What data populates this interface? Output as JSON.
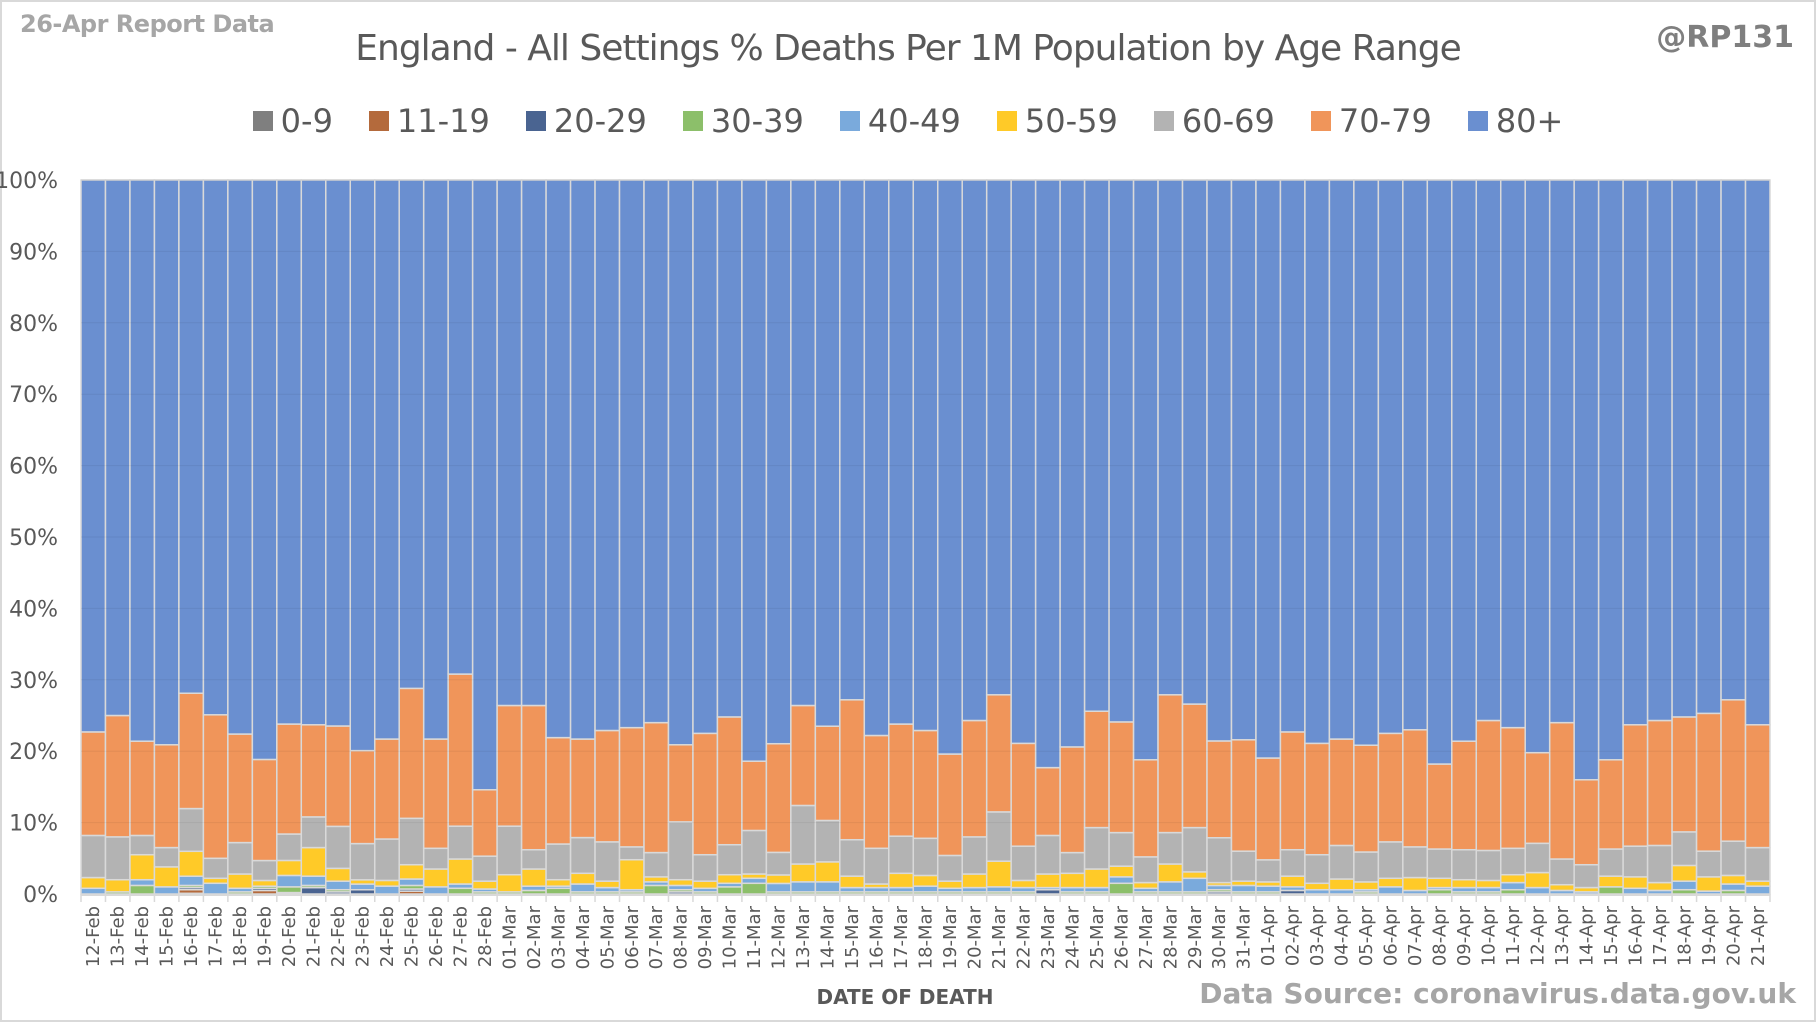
{
  "header": {
    "report_label": "26-Apr Report Data",
    "handle": "@RP131"
  },
  "footer": {
    "source": "Data Source: coronavirus.data.gov.uk"
  },
  "chart_data": {
    "type": "bar",
    "stacked": "percent",
    "title": "England - All Settings % Deaths Per 1M Population by Age Range",
    "xlabel": "DATE OF DEATH",
    "ylabel": "",
    "ylim": [
      0,
      100
    ],
    "yticks": [
      "0%",
      "10%",
      "20%",
      "30%",
      "40%",
      "50%",
      "60%",
      "70%",
      "80%",
      "90%",
      "100%"
    ],
    "legend_position": "top",
    "grid": true,
    "categories": [
      "12-Feb",
      "13-Feb",
      "14-Feb",
      "15-Feb",
      "16-Feb",
      "17-Feb",
      "18-Feb",
      "19-Feb",
      "20-Feb",
      "21-Feb",
      "22-Feb",
      "23-Feb",
      "24-Feb",
      "25-Feb",
      "26-Feb",
      "27-Feb",
      "28-Feb",
      "01-Mar",
      "02-Mar",
      "03-Mar",
      "04-Mar",
      "05-Mar",
      "06-Mar",
      "07-Mar",
      "08-Mar",
      "09-Mar",
      "10-Mar",
      "11-Mar",
      "12-Mar",
      "13-Mar",
      "14-Mar",
      "15-Mar",
      "16-Mar",
      "17-Mar",
      "18-Mar",
      "19-Mar",
      "20-Mar",
      "21-Mar",
      "22-Mar",
      "23-Mar",
      "24-Mar",
      "25-Mar",
      "26-Mar",
      "27-Mar",
      "28-Mar",
      "29-Mar",
      "30-Mar",
      "31-Mar",
      "01-Apr",
      "02-Apr",
      "03-Apr",
      "04-Apr",
      "05-Apr",
      "06-Apr",
      "07-Apr",
      "08-Apr",
      "09-Apr",
      "10-Apr",
      "11-Apr",
      "12-Apr",
      "13-Apr",
      "14-Apr",
      "15-Apr",
      "16-Apr",
      "17-Apr",
      "18-Apr",
      "19-Apr",
      "20-Apr",
      "21-Apr"
    ],
    "series": [
      {
        "name": "0-9",
        "color": "#7f7f7f",
        "values": [
          0,
          0,
          0,
          0,
          0.1,
          0,
          0,
          0,
          0,
          0,
          0,
          0,
          0,
          0,
          0,
          0,
          0,
          0,
          0,
          0,
          0,
          0,
          0,
          0,
          0,
          0,
          0,
          0,
          0,
          0,
          0,
          0,
          0,
          0,
          0,
          0,
          0,
          0,
          0,
          0,
          0,
          0,
          0,
          0,
          0,
          0,
          0,
          0,
          0,
          0,
          0,
          0,
          0,
          0,
          0,
          0,
          0,
          0,
          0,
          0,
          0,
          0,
          0,
          0,
          0,
          0,
          0,
          0,
          0
        ]
      },
      {
        "name": "11-19",
        "color": "#b46a3c",
        "values": [
          0,
          0,
          0,
          0,
          0.5,
          0,
          0,
          0.5,
          0,
          0,
          0,
          0,
          0,
          0.4,
          0,
          0,
          0,
          0,
          0,
          0,
          0,
          0,
          0,
          0,
          0,
          0,
          0,
          0,
          0,
          0,
          0,
          0,
          0,
          0,
          0,
          0,
          0,
          0,
          0,
          0,
          0,
          0,
          0,
          0,
          0,
          0,
          0,
          0,
          0,
          0,
          0,
          0,
          0,
          0,
          0,
          0,
          0,
          0,
          0,
          0,
          0,
          0,
          0,
          0,
          0,
          0,
          0,
          0,
          0
        ]
      },
      {
        "name": "20-29",
        "color": "#4a6491",
        "values": [
          0,
          0,
          0,
          0,
          0.3,
          0,
          0,
          0.3,
          0.2,
          0.9,
          0.3,
          0.6,
          0,
          0.3,
          0,
          0,
          0,
          0,
          0,
          0,
          0,
          0,
          0,
          0,
          0.3,
          0,
          0,
          0,
          0,
          0,
          0,
          0,
          0,
          0,
          0,
          0,
          0,
          0,
          0,
          0.6,
          0,
          0,
          0,
          0,
          0,
          0,
          0.3,
          0,
          0,
          0.5,
          0,
          0,
          0,
          0,
          0,
          0,
          0,
          0,
          0,
          0,
          0,
          0,
          0,
          0,
          0,
          0,
          0,
          0,
          0
        ]
      },
      {
        "name": "30-39",
        "color": "#8cbf6a",
        "values": [
          0,
          0.3,
          1.2,
          0,
          0.3,
          0,
          0.3,
          0.3,
          0.8,
          0.3,
          0.3,
          0,
          0,
          0.5,
          0,
          0.8,
          0.3,
          0.3,
          0.5,
          0.8,
          0.3,
          0.3,
          0.3,
          1.2,
          0.3,
          0.3,
          1.0,
          1.5,
          0.3,
          0.3,
          0.3,
          0.3,
          0.3,
          0.3,
          0.3,
          0.3,
          0.3,
          0.3,
          0.3,
          0,
          0.3,
          0.3,
          1.5,
          0.3,
          0.3,
          0.3,
          0.3,
          0.3,
          0.3,
          0,
          0,
          0,
          0.3,
          0,
          0,
          0.6,
          0.3,
          0.3,
          0.6,
          0,
          0,
          0,
          1.0,
          0,
          0,
          0.6,
          0,
          0.5,
          0
        ]
      },
      {
        "name": "40-49",
        "color": "#7aaadc",
        "values": [
          0.8,
          0,
          0.8,
          1.0,
          1.3,
          1.5,
          0.5,
          0,
          1.6,
          1.3,
          1.2,
          0.8,
          1.1,
          0.9,
          1.0,
          0.6,
          0.4,
          0,
          0.6,
          0.3,
          1.1,
          0.6,
          0.3,
          0.5,
          0.6,
          0.5,
          0.5,
          0.7,
          1.2,
          1.4,
          1.4,
          0.6,
          0.6,
          0.6,
          0.8,
          0.5,
          0.6,
          0.7,
          0.6,
          0.3,
          0.6,
          0.6,
          0.9,
          0.5,
          1.4,
          1.9,
          0.6,
          0.9,
          0.8,
          0.5,
          0.6,
          0.6,
          0.3,
          1.0,
          0.5,
          0.3,
          0.6,
          0.6,
          1.0,
          0.9,
          0.5,
          0.3,
          0,
          0.8,
          0.5,
          1.2,
          0.4,
          0.9,
          1.1
        ]
      },
      {
        "name": "50-59",
        "color": "#ffca28",
        "values": [
          1.5,
          1.7,
          3.5,
          2.8,
          3.5,
          0.7,
          2.0,
          0.8,
          2.1,
          4.0,
          1.8,
          0.6,
          0.8,
          2.0,
          2.5,
          3.5,
          1.1,
          2.4,
          2.4,
          0.9,
          1.5,
          0.9,
          4.2,
          0.7,
          0.8,
          1.0,
          1.2,
          0.6,
          1.2,
          2.5,
          2.8,
          1.6,
          0.5,
          2.0,
          1.5,
          1.0,
          1.9,
          3.6,
          1.0,
          1.9,
          2.0,
          2.6,
          1.5,
          0.8,
          2.5,
          0.9,
          0.4,
          0.6,
          0.6,
          1.5,
          0.9,
          1.5,
          1.1,
          1.2,
          1.8,
          1.3,
          1.1,
          1.0,
          1.1,
          2.1,
          0.8,
          0.6,
          1.5,
          1.6,
          1.1,
          2.2,
          2.0,
          1.2,
          0.7
        ]
      },
      {
        "name": "60-69",
        "color": "#b3b3b3",
        "values": [
          5.9,
          6.0,
          2.7,
          2.7,
          6.0,
          2.8,
          4.4,
          2.8,
          3.7,
          4.3,
          5.9,
          5.1,
          5.8,
          6.5,
          2.9,
          4.6,
          3.5,
          6.8,
          2.7,
          5.0,
          5.0,
          5.5,
          1.8,
          3.4,
          8.1,
          3.7,
          4.2,
          6.1,
          3.2,
          8.2,
          5.8,
          5.1,
          5.0,
          5.2,
          5.2,
          3.6,
          5.2,
          6.9,
          4.8,
          5.4,
          2.9,
          5.8,
          4.7,
          3.6,
          4.4,
          6.2,
          6.3,
          4.2,
          3.1,
          3.7,
          4.0,
          4.7,
          4.2,
          5.1,
          4.3,
          4.1,
          4.2,
          4.2,
          3.7,
          4.1,
          3.6,
          3.2,
          3.8,
          4.3,
          5.2,
          4.7,
          3.6,
          4.8,
          4.7
        ]
      },
      {
        "name": "70-79",
        "color": "#f0955a",
        "values": [
          14.5,
          17.0,
          13.2,
          14.4,
          16.2,
          20.1,
          15.2,
          14.2,
          15.4,
          12.9,
          14.1,
          13.1,
          14.0,
          18.2,
          15.3,
          21.3,
          9.3,
          16.9,
          20.2,
          14.9,
          13.8,
          15.6,
          16.7,
          18.2,
          10.8,
          17.0,
          17.9,
          9.7,
          15.4,
          14.0,
          13.2,
          19.6,
          15.8,
          15.7,
          15.1,
          14.2,
          16.3,
          16.4,
          14.4,
          9.5,
          14.8,
          16.3,
          15.5,
          13.6,
          19.3,
          17.3,
          13.6,
          15.6,
          14.3,
          16.5,
          15.6,
          14.9,
          15.0,
          15.2,
          16.4,
          11.9,
          15.2,
          18.2,
          16.9,
          12.7,
          19.1,
          11.9,
          12.5,
          17.0,
          17.5,
          16.1,
          19.3,
          19.8,
          17.2
        ]
      },
      {
        "name": "80+",
        "color": "#6a8fd0",
        "values": [
          77.3,
          75.0,
          78.6,
          79.1,
          72.1,
          74.9,
          77.6,
          81.4,
          76.2,
          76.3,
          76.7,
          80.4,
          78.3,
          71.2,
          78.3,
          69.2,
          85.4,
          73.6,
          73.6,
          78.1,
          78.3,
          77.1,
          76.7,
          76.0,
          79.1,
          77.5,
          75.2,
          81.4,
          79.9,
          73.6,
          76.5,
          72.8,
          77.8,
          76.2,
          77.1,
          80.4,
          75.7,
          72.1,
          78.9,
          82.3,
          79.4,
          74.4,
          75.9,
          81.2,
          72.1,
          73.4,
          78.8,
          78.4,
          81.2,
          77.3,
          78.9,
          78.3,
          79.4,
          77.5,
          77.0,
          81.8,
          78.6,
          75.7,
          76.7,
          80.2,
          76.0,
          84.0,
          81.2,
          76.3,
          75.7,
          75.2,
          74.7,
          72.8,
          76.3
        ]
      }
    ]
  }
}
